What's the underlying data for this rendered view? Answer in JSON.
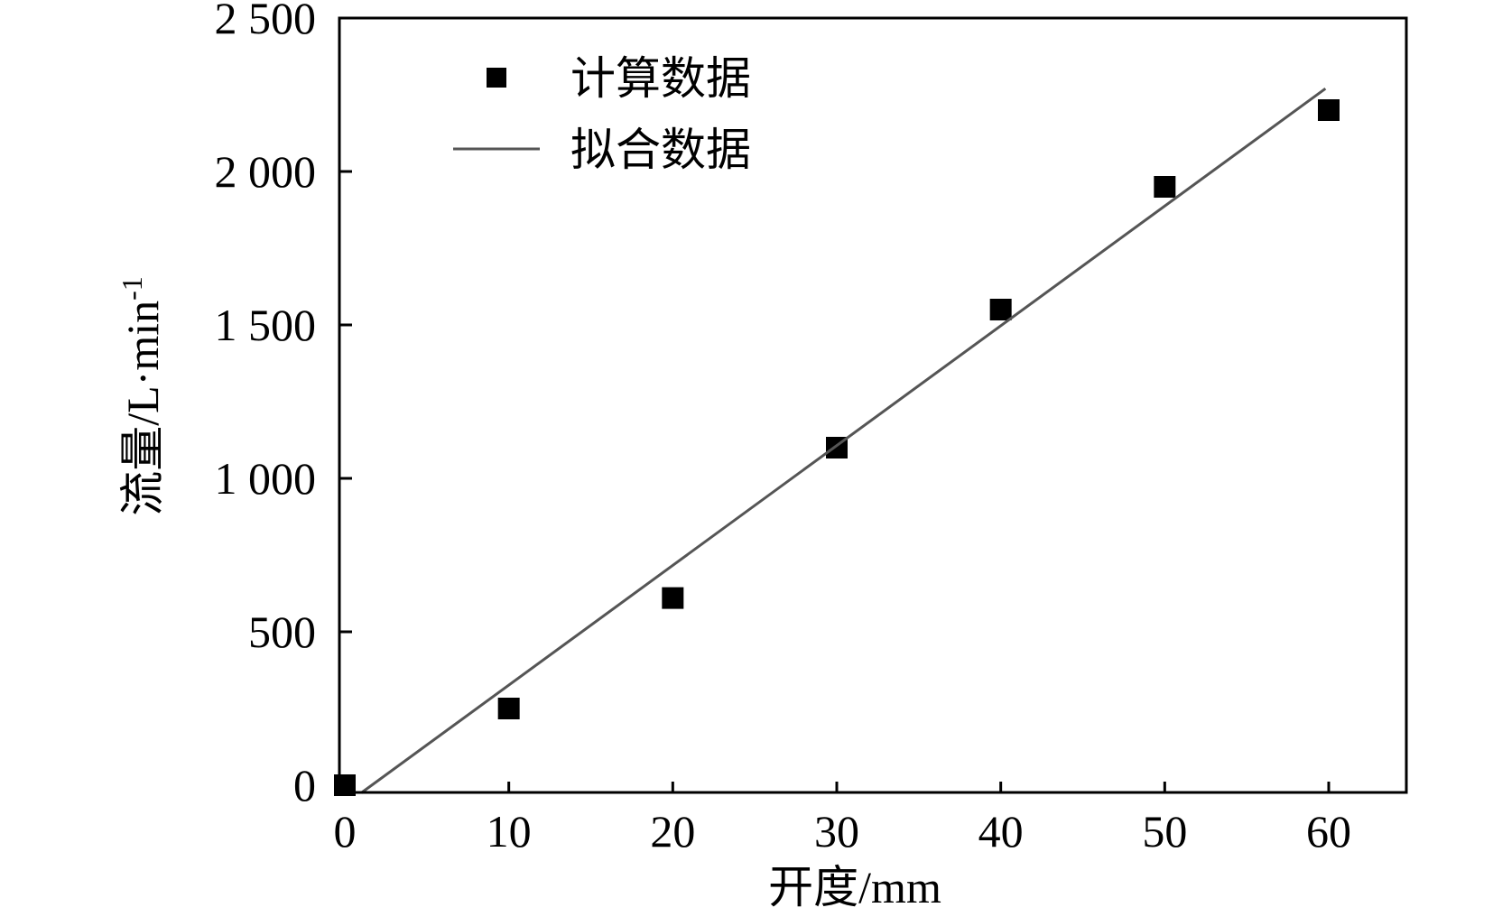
{
  "chart_data": {
    "type": "scatter",
    "title": "",
    "xlabel": "开度/mm",
    "ylabel": {
      "main": "流量/L·min",
      "superscript": "-1"
    },
    "xlim": [
      0,
      65
    ],
    "ylim": [
      0,
      2500
    ],
    "x_ticks": [
      0,
      10,
      20,
      30,
      40,
      50,
      60
    ],
    "x_tick_labels": [
      "0",
      "10",
      "20",
      "30",
      "40",
      "50",
      "60"
    ],
    "y_ticks": [
      0,
      500,
      1000,
      1500,
      2000,
      2500
    ],
    "y_tick_labels": [
      "0",
      "500",
      "1 000",
      "1 500",
      "2 000",
      "2 500"
    ],
    "grid": false,
    "legend_position": "top-left",
    "series": [
      {
        "name": "计算数据",
        "kind": "scatter",
        "marker": "square",
        "color": "#000000",
        "x": [
          0,
          10,
          20,
          30,
          40,
          50,
          60
        ],
        "y": [
          0,
          250,
          610,
          1100,
          1550,
          1950,
          2200
        ]
      },
      {
        "name": "拟合数据",
        "kind": "line",
        "color": "#555555",
        "x": [
          1,
          59.8
        ],
        "y": [
          -25,
          2270
        ]
      }
    ]
  }
}
